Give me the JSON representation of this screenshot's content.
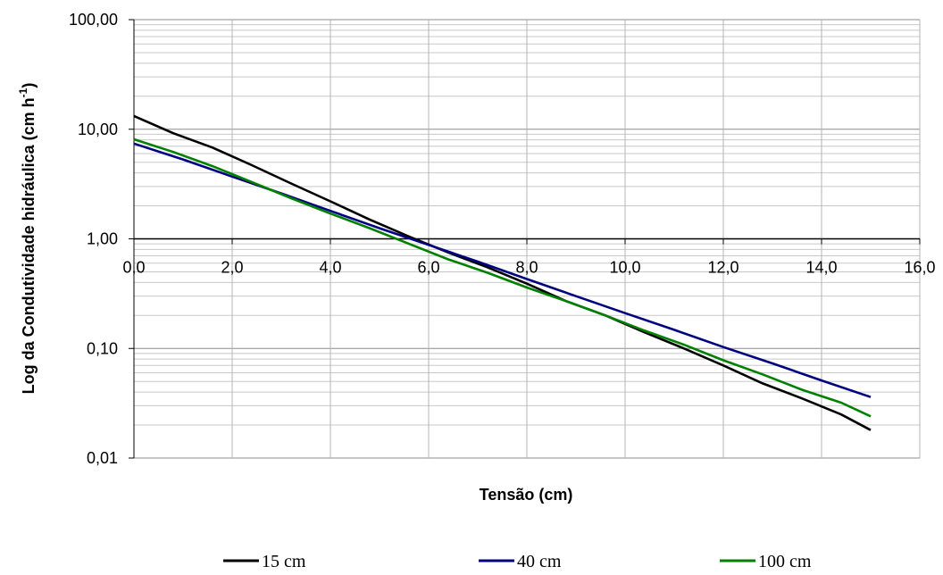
{
  "chart_data": {
    "type": "line",
    "xlabel": "Tensão (cm)",
    "ylabel": "Log da Condutividade hidráulica (cm h",
    "ylabel_sup": "-1",
    "ylabel_close": ")",
    "xlim": [
      0,
      16
    ],
    "ylim": [
      0.01,
      100
    ],
    "yscale": "log",
    "xticks": [
      0,
      2,
      4,
      6,
      8,
      10,
      12,
      14,
      16
    ],
    "xtick_labels": [
      "0,0",
      "2,0",
      "4,0",
      "6,0",
      "8,0",
      "10,0",
      "12,0",
      "14,0",
      "16,0"
    ],
    "yticks": [
      0.01,
      0.1,
      1,
      10,
      100
    ],
    "ytick_labels": [
      "0,01",
      "0,10",
      "1,00",
      "10,00",
      "100,00"
    ],
    "x_axis_crosses_y_at": 1,
    "grid": {
      "vertical": true,
      "horizontal_major": true,
      "horizontal_minor": true
    },
    "legend_position": "bottom",
    "series": [
      {
        "name": "15 cm",
        "color": "#000000",
        "points": [
          [
            0,
            13.2
          ],
          [
            0.8,
            9.2
          ],
          [
            1.6,
            6.8
          ],
          [
            2.4,
            4.7
          ],
          [
            3.2,
            3.2
          ],
          [
            4.0,
            2.2
          ],
          [
            4.8,
            1.5
          ],
          [
            5.6,
            1.05
          ],
          [
            6.4,
            0.75
          ],
          [
            7.2,
            0.55
          ],
          [
            8.0,
            0.39
          ],
          [
            8.8,
            0.27
          ],
          [
            9.6,
            0.2
          ],
          [
            10.4,
            0.14
          ],
          [
            11.2,
            0.1
          ],
          [
            12.0,
            0.07
          ],
          [
            12.8,
            0.048
          ],
          [
            13.6,
            0.035
          ],
          [
            14.4,
            0.025
          ],
          [
            15.0,
            0.018
          ]
        ]
      },
      {
        "name": "40 cm",
        "color": "#000080",
        "points": [
          [
            0,
            7.4
          ],
          [
            1.0,
            5.3
          ],
          [
            2.0,
            3.7
          ],
          [
            3.0,
            2.6
          ],
          [
            4.0,
            1.8
          ],
          [
            5.0,
            1.25
          ],
          [
            6.0,
            0.88
          ],
          [
            7.0,
            0.62
          ],
          [
            8.0,
            0.43
          ],
          [
            9.0,
            0.3
          ],
          [
            10.0,
            0.21
          ],
          [
            11.0,
            0.148
          ],
          [
            12.0,
            0.103
          ],
          [
            13.0,
            0.073
          ],
          [
            14.0,
            0.051
          ],
          [
            15.0,
            0.036
          ]
        ]
      },
      {
        "name": "100 cm",
        "color": "#008000",
        "points": [
          [
            0,
            8.1
          ],
          [
            0.8,
            6.2
          ],
          [
            1.6,
            4.6
          ],
          [
            2.4,
            3.3
          ],
          [
            3.2,
            2.35
          ],
          [
            4.0,
            1.7
          ],
          [
            4.8,
            1.25
          ],
          [
            5.6,
            0.9
          ],
          [
            6.4,
            0.65
          ],
          [
            7.2,
            0.49
          ],
          [
            8.0,
            0.36
          ],
          [
            8.8,
            0.27
          ],
          [
            9.6,
            0.2
          ],
          [
            10.4,
            0.145
          ],
          [
            11.2,
            0.108
          ],
          [
            12.0,
            0.078
          ],
          [
            12.8,
            0.058
          ],
          [
            13.6,
            0.042
          ],
          [
            14.4,
            0.032
          ],
          [
            15.0,
            0.024
          ]
        ]
      }
    ]
  }
}
